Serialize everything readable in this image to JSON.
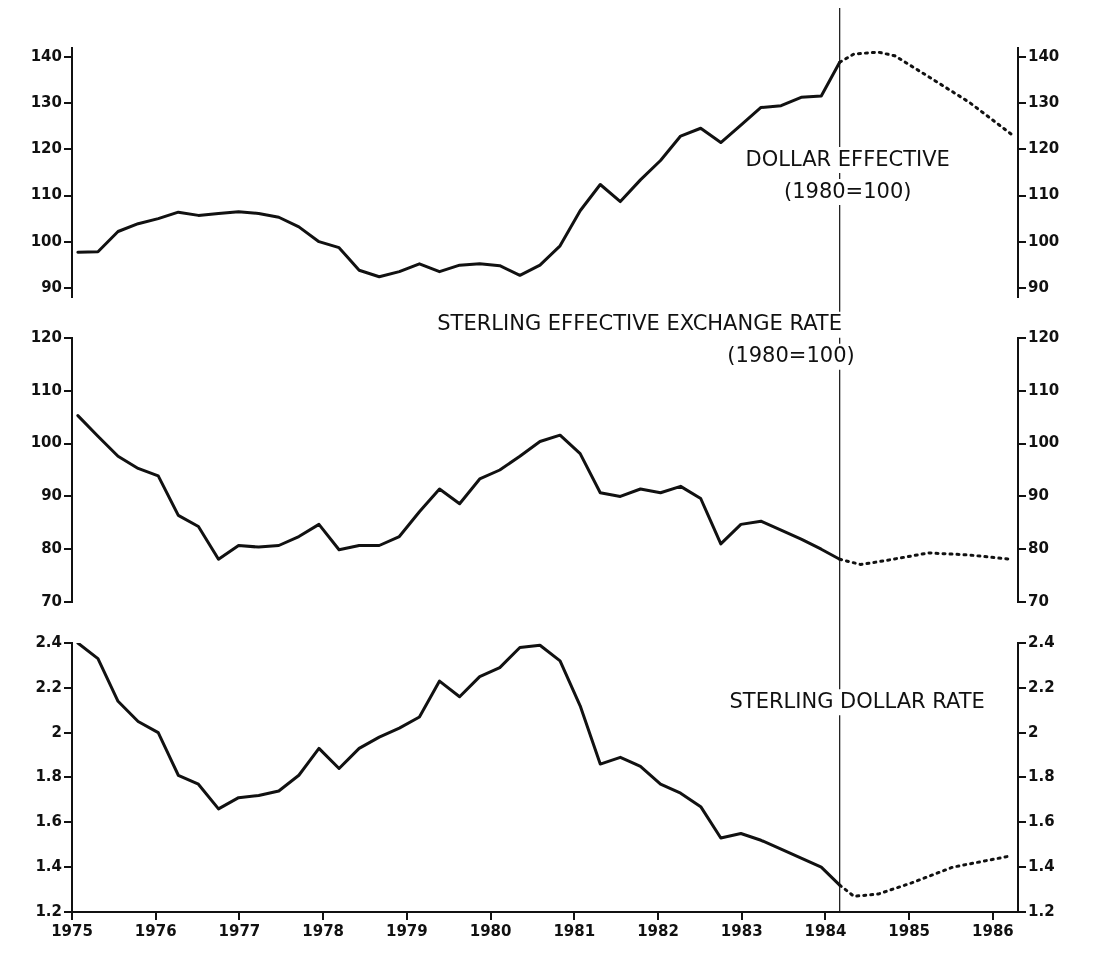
{
  "chart_data": [
    {
      "type": "line",
      "annotations": [
        "DOLLAR EFFECTIVE",
        "(1980=100)"
      ],
      "x": [
        1975.07,
        1975.31,
        1975.55,
        1975.79,
        1976.03,
        1976.27,
        1976.51,
        1976.75,
        1976.99,
        1977.23,
        1977.47,
        1977.71,
        1977.95,
        1978.19,
        1978.43,
        1978.67,
        1978.91,
        1979.15,
        1979.39,
        1979.63,
        1979.87,
        1980.11,
        1980.35,
        1980.59,
        1980.83,
        1981.07,
        1981.31,
        1981.55,
        1981.79,
        1982.03,
        1982.27,
        1982.51,
        1982.75,
        1982.99,
        1983.23,
        1983.47,
        1983.71,
        1983.95,
        1984.17
      ],
      "series": [
        {
          "color": "#111111",
          "line_style": "solid",
          "values": [
            97.7,
            97.8,
            102.2,
            103.9,
            105,
            106.4,
            105.7,
            106.1,
            106.5,
            106.1,
            105.3,
            103.2,
            100,
            98.7,
            93.8,
            92.4,
            93.5,
            95.2,
            93.5,
            94.9,
            95.2,
            94.8,
            92.7,
            94.9,
            99.1,
            106.7,
            112.4,
            108.7,
            113.4,
            117.6,
            122.9,
            124.6,
            121.5,
            125.3,
            129.1,
            129.5,
            131.3,
            131.6,
            138.9
          ]
        },
        {
          "color": "#111111",
          "line_style": "dotted",
          "x": [
            1984.17,
            1984.34,
            1984.63,
            1984.83,
            1985.23,
            1985.72,
            1986.25
          ],
          "values": [
            138.9,
            140.7,
            141.1,
            140.3,
            135.8,
            130.2,
            122.9
          ]
        }
      ],
      "xlim": [
        1975,
        1986.3
      ],
      "xticks": [
        1975,
        1976,
        1977,
        1978,
        1979,
        1980,
        1981,
        1982,
        1983,
        1984,
        1985,
        1986
      ],
      "ylim": [
        88,
        142
      ],
      "yticks": [
        90,
        100,
        110,
        120,
        130,
        140
      ],
      "y2lim": [
        88,
        142
      ],
      "y2ticks": [
        90,
        100,
        110,
        120,
        130,
        140
      ],
      "ref_lines": [
        {
          "axis": "x",
          "value": 1984.17
        }
      ],
      "tick_labels": "y",
      "grid": false,
      "legend": false,
      "marker": "none"
    },
    {
      "type": "line",
      "annotations": [
        "STERLING EFFECTIVE EXCHANGE RATE",
        "(1980=100)"
      ],
      "x": [
        1975.07,
        1975.31,
        1975.55,
        1975.79,
        1976.03,
        1976.27,
        1976.51,
        1976.75,
        1976.99,
        1977.23,
        1977.47,
        1977.71,
        1977.95,
        1978.19,
        1978.43,
        1978.67,
        1978.91,
        1979.15,
        1979.39,
        1979.63,
        1979.87,
        1980.11,
        1980.35,
        1980.59,
        1980.83,
        1981.07,
        1981.31,
        1981.55,
        1981.79,
        1982.03,
        1982.27,
        1982.51,
        1982.75,
        1982.99,
        1983.23,
        1983.47,
        1983.71,
        1983.95,
        1984.17
      ],
      "series": [
        {
          "color": "#111111",
          "line_style": "solid",
          "values": [
            105.3,
            101.4,
            97.6,
            95.3,
            93.9,
            86.4,
            84.3,
            78.1,
            80.7,
            80.4,
            80.7,
            82.4,
            84.7,
            79.9,
            80.7,
            80.7,
            82.4,
            87.1,
            91.4,
            88.6,
            93.3,
            95,
            97.6,
            100.4,
            101.6,
            98.1,
            90.7,
            90,
            91.4,
            90.7,
            91.9,
            89.6,
            81,
            84.7,
            85.3,
            83.6,
            81.9,
            80,
            78.1
          ]
        },
        {
          "color": "#111111",
          "line_style": "dotted",
          "x": [
            1984.17,
            1984.42,
            1984.74,
            1985.23,
            1985.72,
            1986.21
          ],
          "values": [
            78.1,
            77.1,
            77.9,
            79.3,
            78.9,
            78.1
          ]
        }
      ],
      "xlim": [
        1975,
        1986.3
      ],
      "xticks": [
        1975,
        1976,
        1977,
        1978,
        1979,
        1980,
        1981,
        1982,
        1983,
        1984,
        1985,
        1986
      ],
      "ylim": [
        70,
        120
      ],
      "yticks": [
        70,
        80,
        90,
        100,
        110,
        120
      ],
      "y2lim": [
        70,
        120
      ],
      "y2ticks": [
        70,
        80,
        90,
        100,
        110,
        120
      ],
      "ref_lines": [
        {
          "axis": "x",
          "value": 1984.17
        }
      ],
      "tick_labels": "y",
      "grid": false,
      "legend": false,
      "marker": "none"
    },
    {
      "type": "line",
      "annotations": [
        "STERLING DOLLAR RATE"
      ],
      "x": [
        1975.07,
        1975.31,
        1975.55,
        1975.79,
        1976.03,
        1976.27,
        1976.51,
        1976.75,
        1976.99,
        1977.23,
        1977.47,
        1977.71,
        1977.95,
        1978.19,
        1978.43,
        1978.67,
        1978.91,
        1979.15,
        1979.39,
        1979.63,
        1979.87,
        1980.11,
        1980.35,
        1980.59,
        1980.83,
        1981.07,
        1981.31,
        1981.55,
        1981.79,
        1982.03,
        1982.27,
        1982.51,
        1982.75,
        1982.99,
        1983.23,
        1983.47,
        1983.71,
        1983.95,
        1984.17
      ],
      "series": [
        {
          "color": "#111111",
          "line_style": "solid",
          "values": [
            2.4,
            2.33,
            2.14,
            2.05,
            2.0,
            1.81,
            1.77,
            1.66,
            1.71,
            1.72,
            1.74,
            1.81,
            1.93,
            1.84,
            1.93,
            1.98,
            2.02,
            2.07,
            2.23,
            2.16,
            2.25,
            2.29,
            2.38,
            2.39,
            2.32,
            2.12,
            1.86,
            1.89,
            1.85,
            1.77,
            1.73,
            1.67,
            1.53,
            1.55,
            1.52,
            1.48,
            1.44,
            1.4,
            1.32
          ]
        },
        {
          "color": "#111111",
          "line_style": "dotted",
          "x": [
            1984.17,
            1984.34,
            1984.63,
            1985.03,
            1985.52,
            1986.21
          ],
          "values": [
            1.32,
            1.27,
            1.28,
            1.33,
            1.4,
            1.45
          ]
        }
      ],
      "xlim": [
        1975,
        1986.3
      ],
      "xticks": [
        1975,
        1976,
        1977,
        1978,
        1979,
        1980,
        1981,
        1982,
        1983,
        1984,
        1985,
        1986
      ],
      "ylim": [
        1.2,
        2.4
      ],
      "yticks": [
        1.2,
        1.4,
        1.6,
        1.8,
        2,
        2.2,
        2.4
      ],
      "y2lim": [
        1.2,
        2.4
      ],
      "y2ticks": [
        1.2,
        1.4,
        1.6,
        1.8,
        2,
        2.2,
        2.4
      ],
      "ref_lines": [
        {
          "axis": "x",
          "value": 1984.17
        }
      ],
      "grid": false,
      "legend": false,
      "marker": "none"
    }
  ]
}
